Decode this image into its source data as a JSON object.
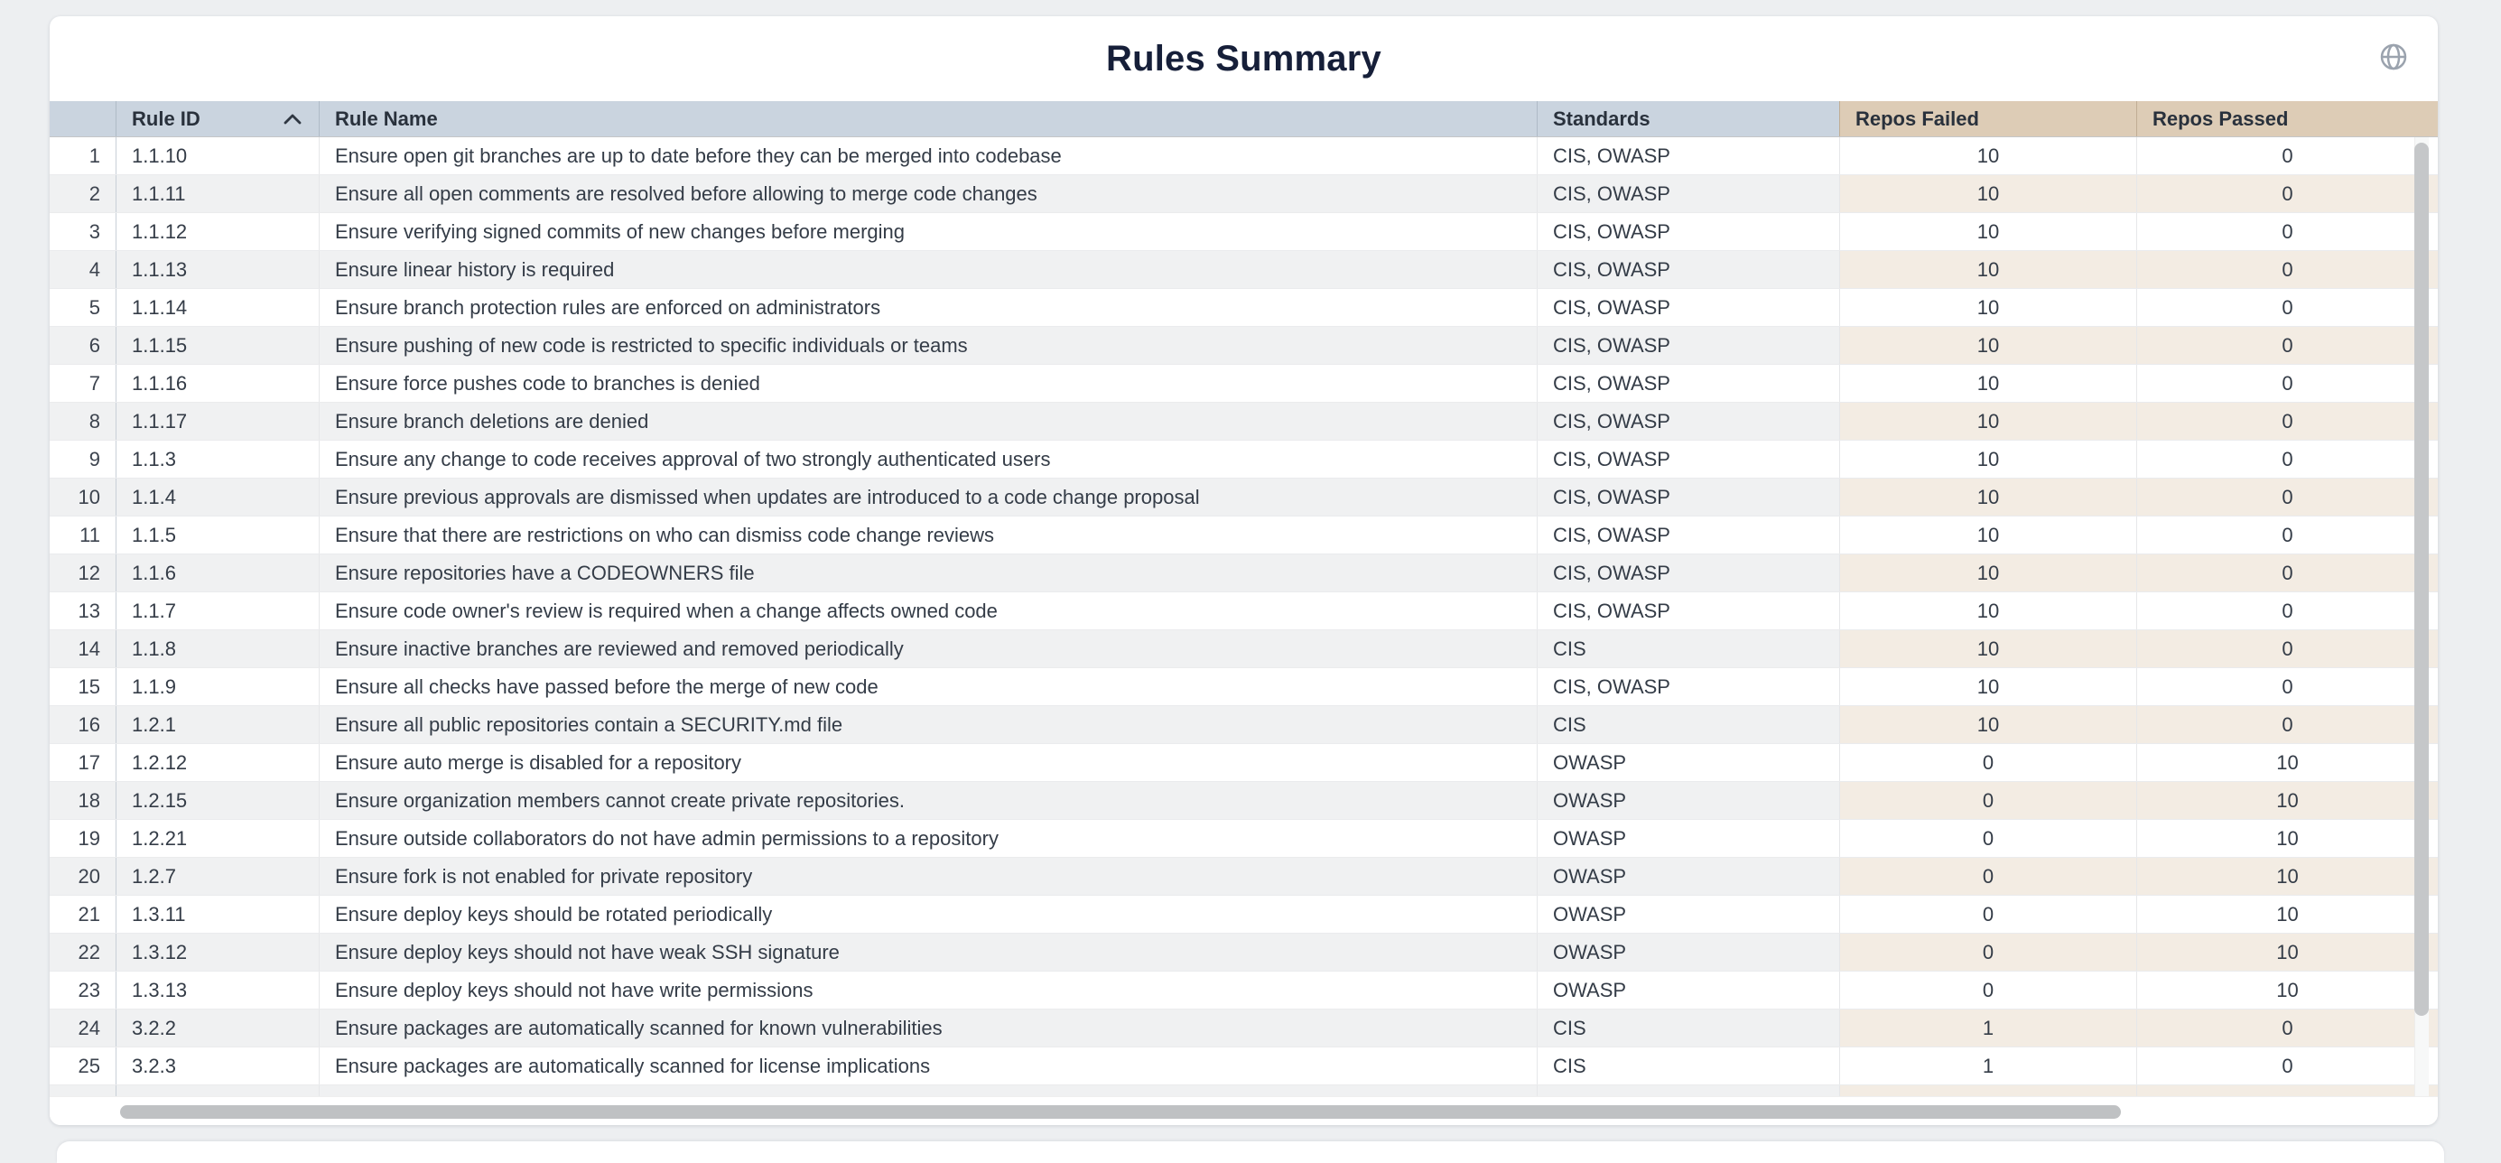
{
  "page": {
    "title": "Rules Summary"
  },
  "theme": {
    "header_blue": "#cad4df",
    "header_tan": "#ddccb6",
    "row_alt_gray": "#f0f1f2",
    "row_alt_tan": "#f3ece3",
    "title_color": "#161f39",
    "scrollbar_color": "#c3c5c7"
  },
  "toolbar": {
    "globe_icon": "globe-icon"
  },
  "table": {
    "sort": {
      "column": "Rule ID",
      "direction": "asc"
    },
    "partial_next_row_visible": true,
    "columns": {
      "row_num": "",
      "rule_id": "Rule ID",
      "rule_name": "Rule Name",
      "standards": "Standards",
      "repos_failed": "Repos Failed",
      "repos_passed": "Repos Passed"
    },
    "rows": [
      {
        "num": "1",
        "id": "1.1.10",
        "name": "Ensure open git branches are up to date before they can be merged into codebase",
        "standards": "CIS, OWASP",
        "failed": "10",
        "passed": "0"
      },
      {
        "num": "2",
        "id": "1.1.11",
        "name": "Ensure all open comments are resolved before allowing to merge code changes",
        "standards": "CIS, OWASP",
        "failed": "10",
        "passed": "0"
      },
      {
        "num": "3",
        "id": "1.1.12",
        "name": "Ensure verifying signed commits of new changes before merging",
        "standards": "CIS, OWASP",
        "failed": "10",
        "passed": "0"
      },
      {
        "num": "4",
        "id": "1.1.13",
        "name": "Ensure linear history is required",
        "standards": "CIS, OWASP",
        "failed": "10",
        "passed": "0"
      },
      {
        "num": "5",
        "id": "1.1.14",
        "name": "Ensure branch protection rules are enforced on administrators",
        "standards": "CIS, OWASP",
        "failed": "10",
        "passed": "0"
      },
      {
        "num": "6",
        "id": "1.1.15",
        "name": "Ensure pushing of new code is restricted to specific individuals or teams",
        "standards": "CIS, OWASP",
        "failed": "10",
        "passed": "0"
      },
      {
        "num": "7",
        "id": "1.1.16",
        "name": "Ensure force pushes code to branches is denied",
        "standards": "CIS, OWASP",
        "failed": "10",
        "passed": "0"
      },
      {
        "num": "8",
        "id": "1.1.17",
        "name": "Ensure branch deletions are denied",
        "standards": "CIS, OWASP",
        "failed": "10",
        "passed": "0"
      },
      {
        "num": "9",
        "id": "1.1.3",
        "name": "Ensure any change to code receives approval of two strongly authenticated users",
        "standards": "CIS, OWASP",
        "failed": "10",
        "passed": "0"
      },
      {
        "num": "10",
        "id": "1.1.4",
        "name": "Ensure previous approvals are dismissed when updates are introduced to a code change proposal",
        "standards": "CIS, OWASP",
        "failed": "10",
        "passed": "0"
      },
      {
        "num": "11",
        "id": "1.1.5",
        "name": "Ensure that there are restrictions on who can dismiss code change reviews",
        "standards": "CIS, OWASP",
        "failed": "10",
        "passed": "0"
      },
      {
        "num": "12",
        "id": "1.1.6",
        "name": "Ensure repositories have a CODEOWNERS file",
        "standards": "CIS, OWASP",
        "failed": "10",
        "passed": "0"
      },
      {
        "num": "13",
        "id": "1.1.7",
        "name": "Ensure code owner's review is required when a change affects owned code",
        "standards": "CIS, OWASP",
        "failed": "10",
        "passed": "0"
      },
      {
        "num": "14",
        "id": "1.1.8",
        "name": "Ensure inactive branches are reviewed and removed periodically",
        "standards": "CIS",
        "failed": "10",
        "passed": "0"
      },
      {
        "num": "15",
        "id": "1.1.9",
        "name": "Ensure all checks have passed before the merge of new code",
        "standards": "CIS, OWASP",
        "failed": "10",
        "passed": "0"
      },
      {
        "num": "16",
        "id": "1.2.1",
        "name": "Ensure all public repositories contain a SECURITY.md file",
        "standards": "CIS",
        "failed": "10",
        "passed": "0"
      },
      {
        "num": "17",
        "id": "1.2.12",
        "name": "Ensure auto merge is disabled for a repository",
        "standards": "OWASP",
        "failed": "0",
        "passed": "10"
      },
      {
        "num": "18",
        "id": "1.2.15",
        "name": "Ensure organization members cannot create private repositories.",
        "standards": "OWASP",
        "failed": "0",
        "passed": "10"
      },
      {
        "num": "19",
        "id": "1.2.21",
        "name": "Ensure outside collaborators do not have admin permissions to a repository",
        "standards": "OWASP",
        "failed": "0",
        "passed": "10"
      },
      {
        "num": "20",
        "id": "1.2.7",
        "name": "Ensure fork is not enabled for private repository",
        "standards": "OWASP",
        "failed": "0",
        "passed": "10"
      },
      {
        "num": "21",
        "id": "1.3.11",
        "name": "Ensure deploy keys should be rotated periodically",
        "standards": "OWASP",
        "failed": "0",
        "passed": "10"
      },
      {
        "num": "22",
        "id": "1.3.12",
        "name": "Ensure deploy keys should not have weak SSH signature",
        "standards": "OWASP",
        "failed": "0",
        "passed": "10"
      },
      {
        "num": "23",
        "id": "1.3.13",
        "name": "Ensure deploy keys should not have write permissions",
        "standards": "OWASP",
        "failed": "0",
        "passed": "10"
      },
      {
        "num": "24",
        "id": "3.2.2",
        "name": "Ensure packages are automatically scanned for known vulnerabilities",
        "standards": "CIS",
        "failed": "1",
        "passed": "0"
      },
      {
        "num": "25",
        "id": "3.2.3",
        "name": "Ensure packages are automatically scanned for license implications",
        "standards": "CIS",
        "failed": "1",
        "passed": "0"
      }
    ]
  }
}
